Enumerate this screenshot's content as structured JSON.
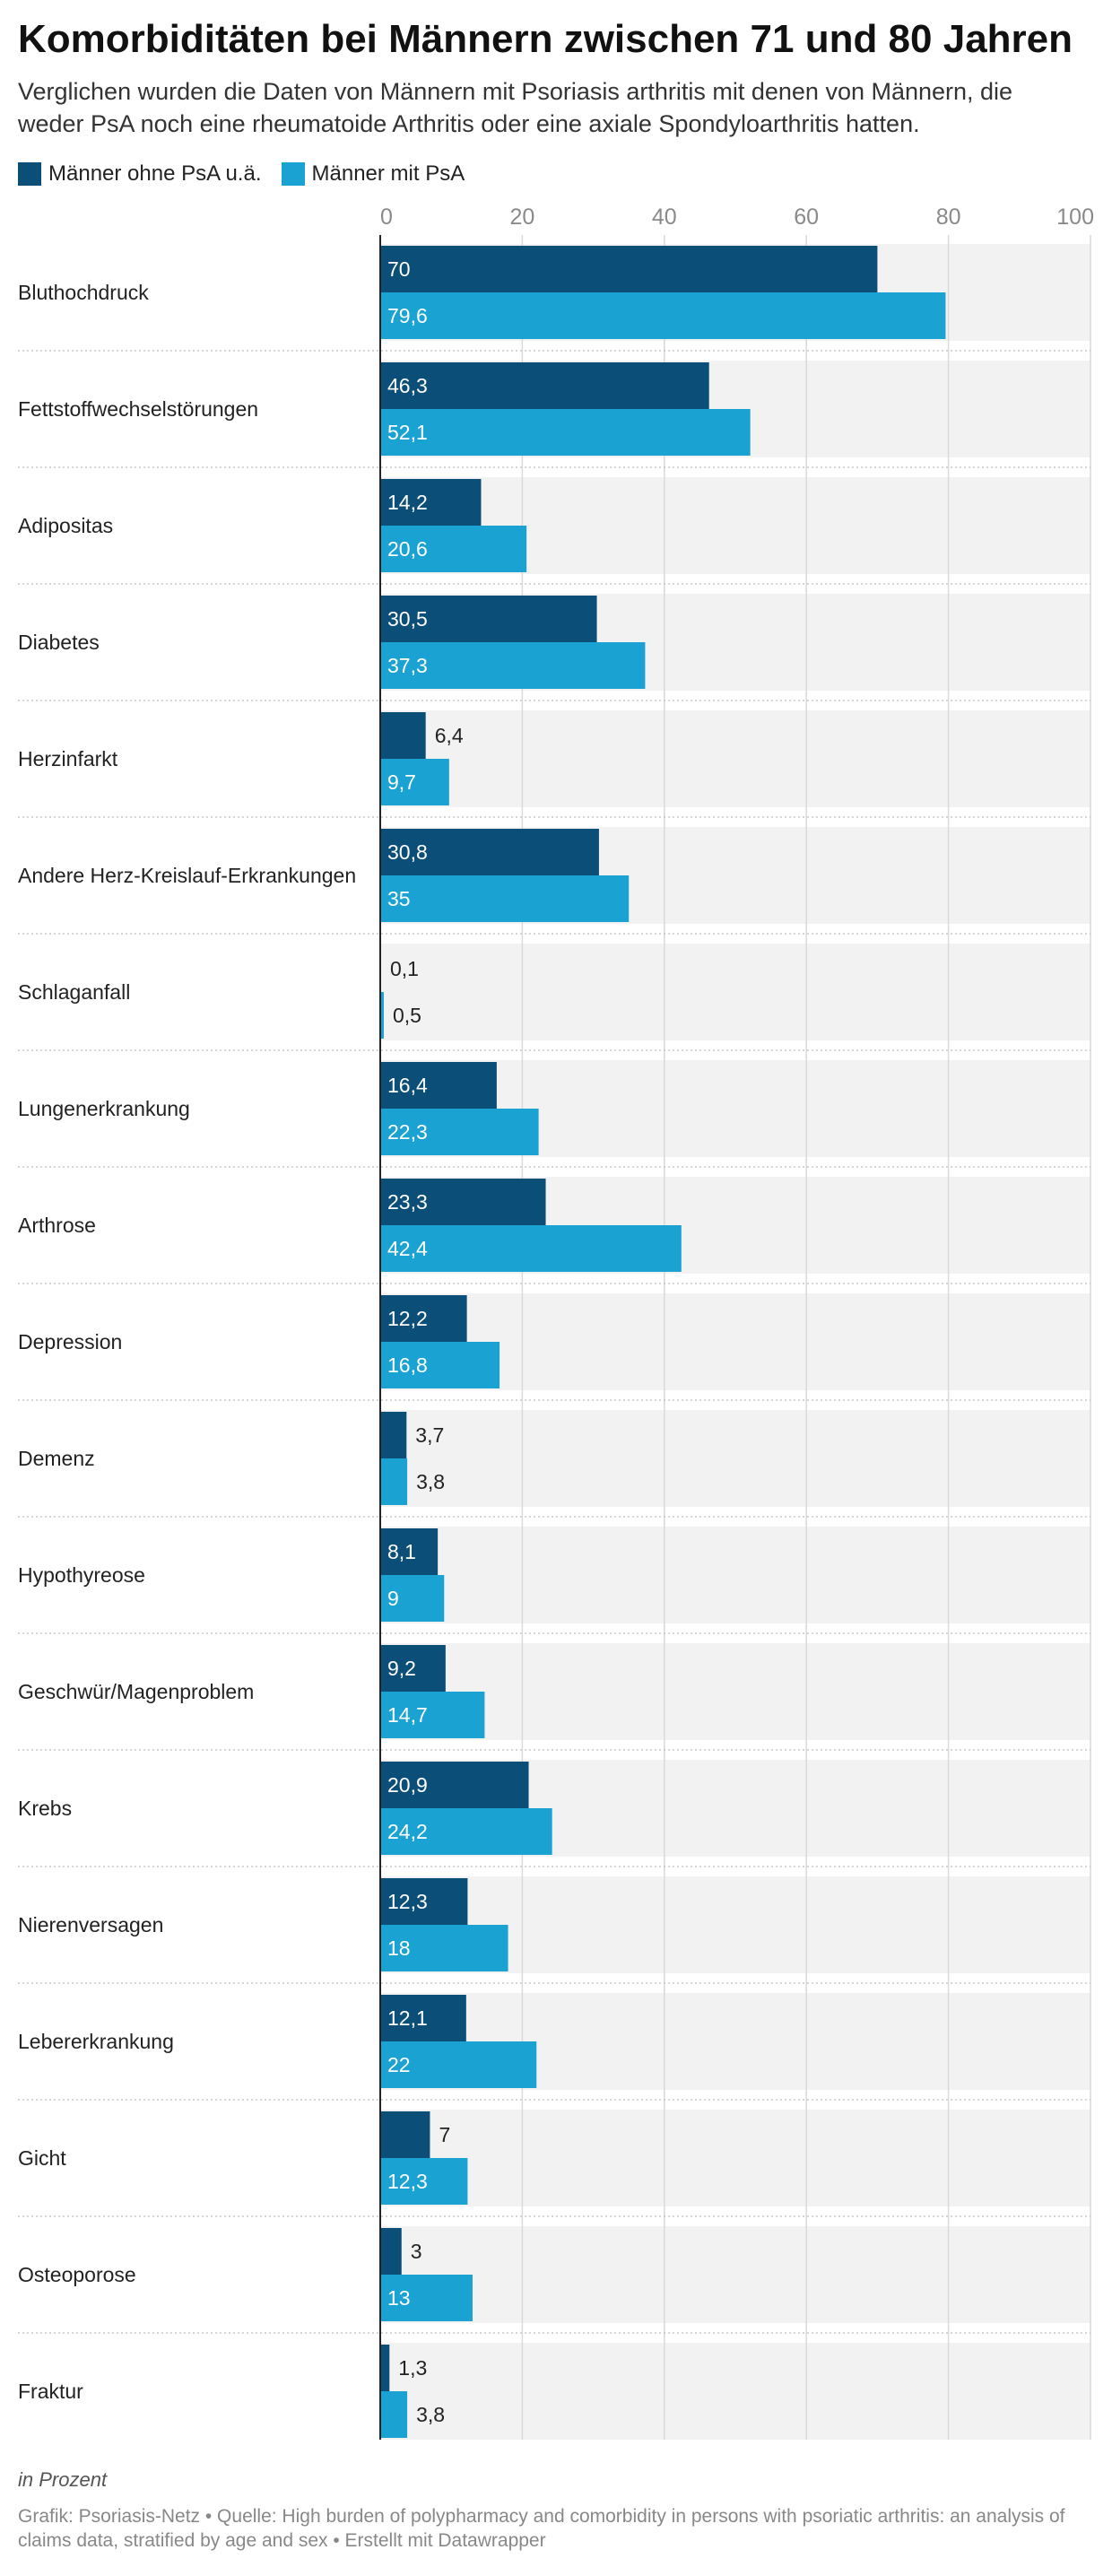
{
  "chart_data": {
    "type": "bar",
    "orientation": "horizontal",
    "title": "Komorbiditäten bei Männern zwischen 71 und 80 Jahren",
    "subtitle": "Verglichen wurden die Daten von Männern mit Psoriasis arthritis mit denen von Männern, die weder PsA noch eine rheumatoide Arthritis oder eine axiale Spondyloarthritis hatten.",
    "categories": [
      "Bluthochdruck",
      "Fettstoffwechselstörungen",
      "Adipositas",
      "Diabetes",
      "Herzinfarkt",
      "Andere Herz-Kreislauf-Erkrankungen",
      "Schlaganfall",
      "Lungenerkrankung",
      "Arthrose",
      "Depression",
      "Demenz",
      "Hypothyreose",
      "Geschwür/Magenproblem",
      "Krebs",
      "Nierenversagen",
      "Lebererkrankung",
      "Gicht",
      "Osteoporose",
      "Fraktur"
    ],
    "series": [
      {
        "name": "Männer ohne PsA u.ä.",
        "color": "#0b4e78",
        "values": [
          70,
          46.3,
          14.2,
          30.5,
          6.4,
          30.8,
          0.1,
          16.4,
          23.3,
          12.2,
          3.7,
          8.1,
          9.2,
          20.9,
          12.3,
          12.1,
          7,
          3,
          1.3
        ],
        "labels": [
          "70",
          "46,3",
          "14,2",
          "30,5",
          "6,4",
          "30,8",
          "0,1",
          "16,4",
          "23,3",
          "12,2",
          "3,7",
          "8,1",
          "9,2",
          "20,9",
          "12,3",
          "12,1",
          "7",
          "3",
          "1,3"
        ]
      },
      {
        "name": "Männer mit PsA",
        "color": "#1aa2d2",
        "values": [
          79.6,
          52.1,
          20.6,
          37.3,
          9.7,
          35,
          0.5,
          22.3,
          42.4,
          16.8,
          3.8,
          9,
          14.7,
          24.2,
          18,
          22,
          12.3,
          13,
          3.8
        ],
        "labels": [
          "79,6",
          "52,1",
          "20,6",
          "37,3",
          "9,7",
          "35",
          "0,5",
          "22,3",
          "42,4",
          "16,8",
          "3,8",
          "9",
          "14,7",
          "24,2",
          "18",
          "22",
          "12,3",
          "13",
          "3,8"
        ]
      }
    ],
    "xlim": [
      0,
      100
    ],
    "xticks": [
      0,
      20,
      40,
      60,
      80,
      100
    ],
    "xtick_labels": [
      "0",
      "20",
      "40",
      "60",
      "80",
      "100"
    ],
    "grid": true,
    "legend_placement": "top-left",
    "background_color": "#f2f2f2",
    "label_colors": {
      "inside": "#ffffff",
      "outside": "#222222"
    }
  },
  "unit_note": "in Prozent",
  "footer": "Grafik: Psoriasis-Netz • Quelle: High burden of polypharmacy and comorbidity in persons with psoriatic arthritis: an analysis of claims data, stratified by age and sex • Erstellt mit Datawrapper"
}
